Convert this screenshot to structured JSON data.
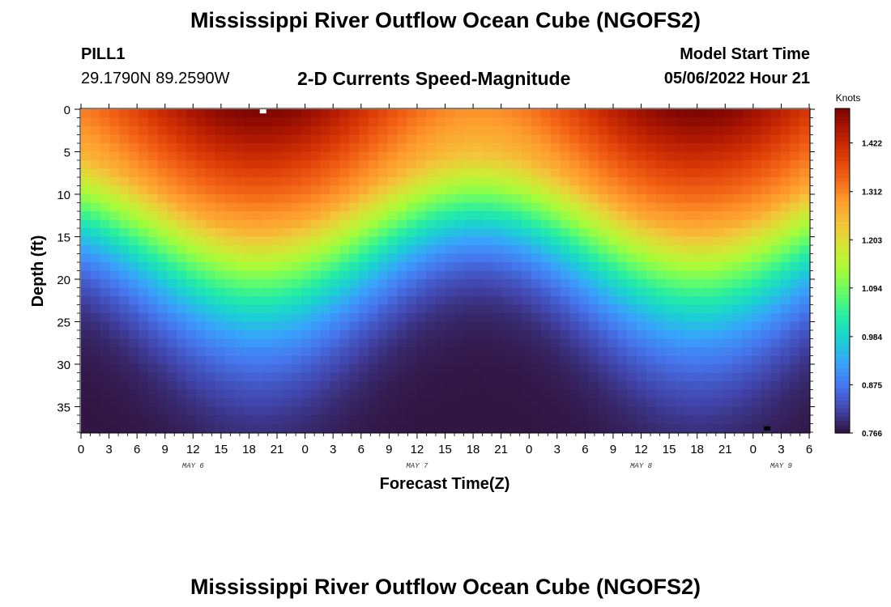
{
  "header": {
    "title": "Mississippi River Outflow Ocean Cube (NGOFS2)",
    "station": "PILL1",
    "coordinates": "29.1790N  89.2590W",
    "subtitle": "2-D Currents Speed-Magnitude",
    "model_start_label": "Model Start Time",
    "model_start_value": "05/06/2022 Hour 21"
  },
  "footer": {
    "title": "Mississippi River Outflow Ocean Cube (NGOFS2)"
  },
  "chart_data": {
    "type": "heatmap",
    "title": "2-D Currents Speed-Magnitude",
    "xlabel": "Forecast Time(Z)",
    "ylabel": "Depth (ft)",
    "colorbar_unit": "Knots",
    "x_range_hours": [
      0,
      78
    ],
    "x_tick_step_hours": 3,
    "x_tick_labels": [
      "0",
      "3",
      "6",
      "9",
      "12",
      "15",
      "18",
      "21",
      "0",
      "3",
      "6",
      "9",
      "12",
      "15",
      "18",
      "21",
      "0",
      "3",
      "6",
      "9",
      "12",
      "15",
      "18",
      "21",
      "0",
      "3",
      "6"
    ],
    "day_labels": [
      {
        "hour": 12,
        "label": "MAY 6"
      },
      {
        "hour": 36,
        "label": "MAY 7"
      },
      {
        "hour": 60,
        "label": "MAY 8"
      },
      {
        "hour": 75,
        "label": "MAY 9"
      }
    ],
    "y_range_ft": [
      0,
      38
    ],
    "y_ticks": [
      0,
      5,
      10,
      15,
      20,
      25,
      30,
      35
    ],
    "y_inverted": true,
    "colorbar_ticks": [
      0.766,
      0.875,
      0.984,
      1.094,
      1.203,
      1.312,
      1.422
    ],
    "value_range": [
      0.766,
      1.5
    ],
    "grid": {
      "columns": 76,
      "rows": 38
    },
    "peaks_hours": [
      19,
      66
    ],
    "trough_hours": [
      37
    ],
    "peak_surface_value": 1.5,
    "trough_surface_value": 1.3,
    "bottom_value": 0.77,
    "markers": [
      {
        "hour": 19.5,
        "depth_ft": 0.3,
        "color": "#ffffff"
      },
      {
        "hour": 73.5,
        "depth_ft": 37.6,
        "color": "#000000"
      }
    ],
    "colormap": [
      "#30123b",
      "#4145ab",
      "#4675ed",
      "#39a2fc",
      "#1bcfd4",
      "#24eca6",
      "#61fc6c",
      "#a4fc3b",
      "#d1e834",
      "#f3c63a",
      "#fe9b2d",
      "#f36315",
      "#d93806",
      "#b11901",
      "#7a0402"
    ]
  }
}
